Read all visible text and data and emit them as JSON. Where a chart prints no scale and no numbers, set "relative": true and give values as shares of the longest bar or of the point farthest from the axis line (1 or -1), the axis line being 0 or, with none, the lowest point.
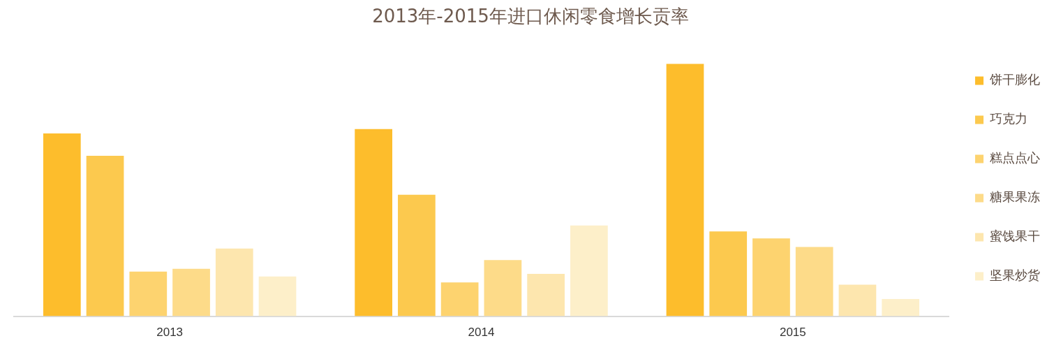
{
  "chart_data": {
    "type": "bar",
    "title": "2013年-2015年进口休闲零食增长贡率",
    "relative": true,
    "categories": [
      "2013",
      "2014",
      "2015"
    ],
    "legend": "right",
    "series": [
      {
        "name": "饼干膨化",
        "color": "#fdbd2c",
        "values": [
          0.724,
          0.741,
          1
        ]
      },
      {
        "name": "巧克力",
        "color": "#fcc94e",
        "values": [
          0.635,
          0.481,
          0.336
        ]
      },
      {
        "name": "糕点点心",
        "color": "#fdd36f",
        "values": [
          0.177,
          0.134,
          0.308
        ]
      },
      {
        "name": "糖果果冻",
        "color": "#fddb89",
        "values": [
          0.188,
          0.222,
          0.274
        ]
      },
      {
        "name": "蜜饯果干",
        "color": "#fde6ae",
        "values": [
          0.268,
          0.168,
          0.125
        ]
      },
      {
        "name": "坚果炒货",
        "color": "#fdefc9",
        "values": [
          0.157,
          0.359,
          0.068
        ]
      }
    ]
  }
}
